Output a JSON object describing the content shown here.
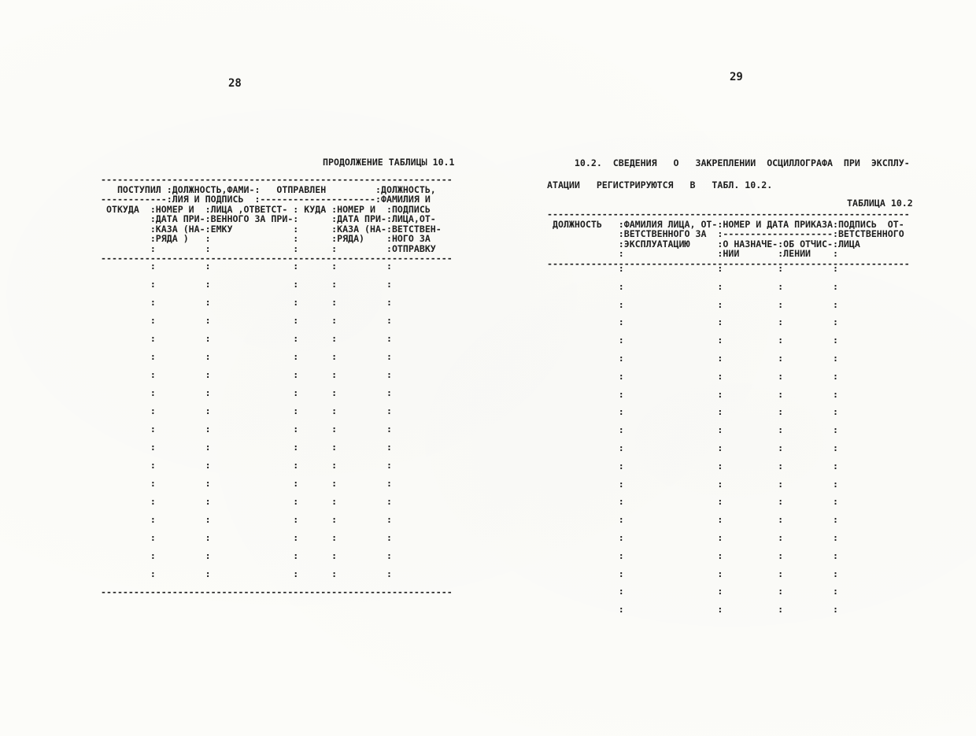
{
  "document": {
    "ink_color": "#1e1e1e",
    "paper_color": "#fcfcf9"
  },
  "page_left": {
    "page_number": "28",
    "table_caption": "ПРОДОЛЖЕНИЕ ТАБЛИЦЫ 10.1",
    "table_header_lines": [
      "----------------------------------------------------------------",
      "   ПОСТУПИЛ :ДОЛЖНОСТЬ,ФАМИ-:   ОТПРАВЛЕН         :ДОЛЖНОСТЬ,",
      "------------:ЛИЯ И ПОДПИСЬ  :---------------------:ФАМИЛИЯ И",
      " ОТКУДА  :НОМЕР И  :ЛИЦА ,ОТВЕТСТ- : КУДА :НОМЕР И  :ПОДПИСЬ",
      "         :ДАТА ПРИ-:ВЕННОГО ЗА ПРИ-:      :ДАТА ПРИ-:ЛИЦА,ОТ-",
      "         :КАЗА (НА-:ЕМКУ           :      :КАЗА (НА-:ВЕТСТВЕН-",
      "         :РЯДА )   :               :      :РЯДА)    :НОГО ЗА",
      "         :         :               :      :         :ОТПРАВКУ",
      "----------------------------------------------------------------"
    ],
    "table_body_lines": [
      "         :         :               :      :         :",
      "         :         :               :      :         :",
      "         :         :               :      :         :",
      "         :         :               :      :         :",
      "         :         :               :      :         :",
      "         :         :               :      :         :",
      "         :         :               :      :         :",
      "         :         :               :      :         :",
      "         :         :               :      :         :",
      "         :         :               :      :         :",
      "         :         :               :      :         :",
      "         :         :               :      :         :",
      "         :         :               :      :         :",
      "         :         :               :      :         :",
      "         :         :               :      :         :",
      "         :         :               :      :         :",
      "         :         :               :      :         :",
      "         :         :               :      :         :"
    ],
    "table_bottom_border": "----------------------------------------------------------------"
  },
  "page_right": {
    "page_number": "29",
    "paragraph_lines": [
      "     10.2.  СВЕДЕНИЯ   О   ЗАКРЕПЛЕНИИ  ОСЦИЛЛОГРАФА  ПРИ  ЭКСПЛУ-",
      "АТАЦИИ   РЕГИСТРИРУЮТСЯ   В   ТАБЛ. 10.2."
    ],
    "table_caption": "ТАБЛИЦА 10.2",
    "table_header_lines": [
      "------------------------------------------------------------------",
      " ДОЛЖНОСТЬ   :ФАМИЛИЯ ЛИЦА, ОТ-:НОМЕР И ДАТА ПРИКАЗА:ПОДПИСЬ  ОТ-",
      "             :ВЕТСТВЕННОГО ЗА  :--------------------:ВЕТСТВЕННОГО",
      "             :ЭКСПЛУАТАЦИЮ     :О НАЗНАЧЕ-:ОБ ОТЧИС-:ЛИЦА",
      "             :                 :НИИ       :ЛЕНИИ    :",
      "------------------------------------------------------------------"
    ],
    "table_body_lines": [
      "             :                 :          :         :",
      "             :                 :          :         :",
      "             :                 :          :         :",
      "             :                 :          :         :",
      "             :                 :          :         :",
      "             :                 :          :         :",
      "             :                 :          :         :",
      "             :                 :          :         :",
      "             :                 :          :         :",
      "             :                 :          :         :",
      "             :                 :          :         :",
      "             :                 :          :         :",
      "             :                 :          :         :",
      "             :                 :          :         :",
      "             :                 :          :         :",
      "             :                 :          :         :",
      "             :                 :          :         :",
      "             :                 :          :         :",
      "             :                 :          :         :",
      "             :                 :          :         :"
    ]
  }
}
